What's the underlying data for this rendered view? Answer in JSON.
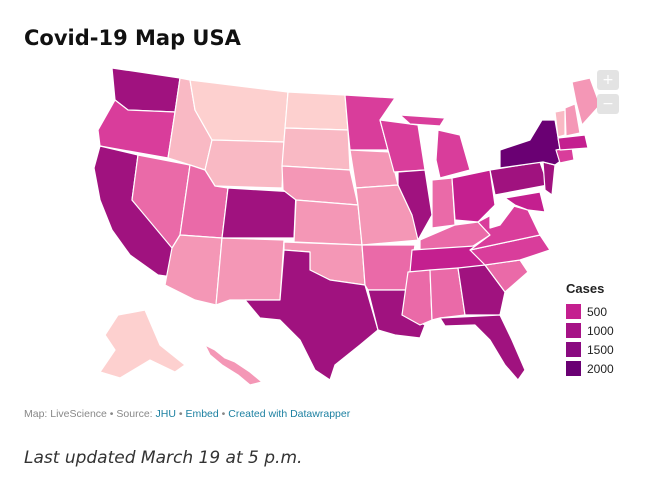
{
  "title": "Covid-19 Map USA",
  "zoom": {
    "in_label": "+",
    "out_label": "−"
  },
  "legend": {
    "title": "Cases",
    "items": [
      {
        "label": "500",
        "color": "#c41f8f"
      },
      {
        "label": "1000",
        "color": "#a61286"
      },
      {
        "label": "1500",
        "color": "#8a0a80"
      },
      {
        "label": "2000",
        "color": "#6a0073"
      }
    ]
  },
  "footer": {
    "prefix": "Map: LiveScience • Source: ",
    "source_link": "JHU",
    "sep1": " • ",
    "embed_link": "Embed",
    "sep2": " • ",
    "created_link": "Created with Datawrapper"
  },
  "updated": "Last updated March 19 at 5 p.m.",
  "colors": {
    "c0": "#ffffff",
    "c1": "#fdd0cf",
    "c2": "#f9b9c4",
    "c3": "#f497b6",
    "c4": "#ea6aa8",
    "c5": "#d93d9b",
    "c6": "#c41f8f",
    "c7": "#a0127f",
    "c8": "#6a0073"
  }
}
